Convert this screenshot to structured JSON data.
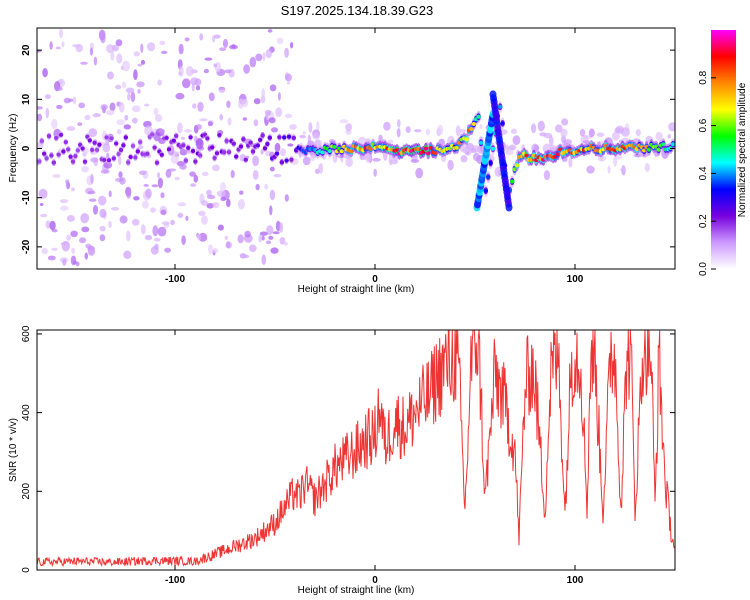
{
  "title": "S197.2025.134.18.39.G23",
  "chart_data": [
    {
      "type": "heatmap",
      "xlabel": "Height of straight line (km)",
      "ylabel": "Frequency (Hz)",
      "xlim": [
        -169,
        150
      ],
      "ylim": [
        -24.5,
        24.5
      ],
      "xticks": [
        -100,
        0,
        100
      ],
      "yticks": [
        -20,
        -10,
        0,
        10,
        20
      ],
      "colorbar": {
        "label": "Normalized spectral amplitude",
        "ticks": [
          0.0,
          0.2,
          0.4,
          0.6,
          0.8
        ],
        "range": [
          0,
          1
        ],
        "colormap": [
          "#ffffff",
          "#cc99ff",
          "#7700dd",
          "#0000ff",
          "#00ffff",
          "#00ff00",
          "#ffff00",
          "#ff8800",
          "#ff0000",
          "#ff00ff"
        ]
      },
      "ridge": [
        {
          "x": -169,
          "f": 0,
          "amp": 0.2
        },
        {
          "x": -100,
          "f": 0,
          "amp": 0.2
        },
        {
          "x": -40,
          "f": 0,
          "amp": 0.25
        },
        {
          "x": -35,
          "f": -0.5,
          "amp": 0.4
        },
        {
          "x": -20,
          "f": 0,
          "amp": 0.6
        },
        {
          "x": -5,
          "f": 0,
          "amp": 0.85
        },
        {
          "x": 0,
          "f": 0.5,
          "amp": 0.7
        },
        {
          "x": 10,
          "f": -0.5,
          "amp": 0.9
        },
        {
          "x": 25,
          "f": -0.5,
          "amp": 0.9
        },
        {
          "x": 40,
          "f": 0,
          "amp": 0.7
        },
        {
          "x": 46,
          "f": 2.5,
          "amp": 0.8
        },
        {
          "x": 52,
          "f": 7,
          "amp": 0.5
        },
        {
          "x": 55,
          "f": -10,
          "amp": 0.4
        },
        {
          "x": 63,
          "f": 10,
          "amp": 0.4
        },
        {
          "x": 66,
          "f": -10,
          "amp": 0.3
        },
        {
          "x": 72,
          "f": -1.5,
          "amp": 0.8
        },
        {
          "x": 83,
          "f": -2,
          "amp": 0.9
        },
        {
          "x": 95,
          "f": -0.5,
          "amp": 0.8
        },
        {
          "x": 110,
          "f": 0,
          "amp": 0.8
        },
        {
          "x": 125,
          "f": 0,
          "amp": 0.85
        },
        {
          "x": 150,
          "f": 0.5,
          "amp": 0.5
        }
      ]
    },
    {
      "type": "line",
      "xlabel": "Height of straight line (km)",
      "ylabel": "SNR (10 * v/v)",
      "xlim": [
        -169,
        150
      ],
      "ylim": [
        0,
        610
      ],
      "xticks": [
        -100,
        0,
        100
      ],
      "yticks": [
        0,
        200,
        400,
        600
      ],
      "color": "#ee3333",
      "x": [
        -169,
        -150,
        -130,
        -110,
        -90,
        -80,
        -70,
        -60,
        -50,
        -45,
        -40,
        -38,
        -35,
        -30,
        -25,
        -20,
        -15,
        -10,
        -5,
        0,
        2,
        5,
        10,
        15,
        20,
        25,
        28,
        30,
        35,
        40,
        42,
        45,
        48,
        50,
        52,
        55,
        60,
        65,
        70,
        72,
        75,
        78,
        80,
        85,
        88,
        90,
        92,
        95,
        98,
        100,
        103,
        106,
        108,
        110,
        114,
        118,
        120,
        123,
        126,
        128,
        130,
        134,
        138,
        140,
        142,
        145,
        148,
        150
      ],
      "y": [
        20,
        22,
        20,
        24,
        22,
        40,
        60,
        80,
        120,
        160,
        200,
        180,
        220,
        180,
        220,
        260,
        280,
        300,
        330,
        340,
        420,
        320,
        380,
        360,
        400,
        430,
        450,
        480,
        520,
        540,
        490,
        150,
        520,
        600,
        560,
        180,
        500,
        420,
        300,
        80,
        460,
        520,
        480,
        150,
        500,
        540,
        520,
        140,
        520,
        560,
        530,
        160,
        560,
        530,
        150,
        560,
        540,
        160,
        560,
        540,
        150,
        570,
        560,
        160,
        540,
        230,
        100,
        50
      ]
    }
  ]
}
